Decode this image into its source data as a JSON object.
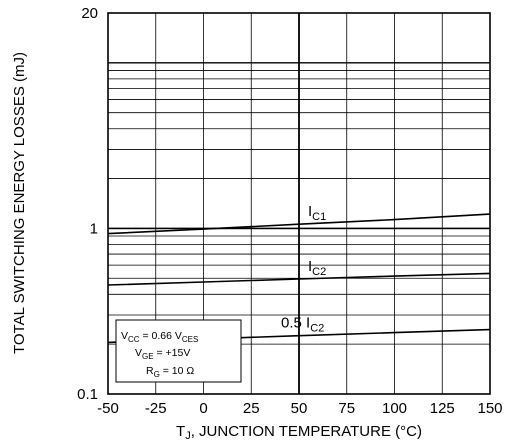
{
  "chart_data": {
    "type": "line",
    "title": "",
    "xlabel": "T_J, JUNCTION TEMPERATURE (°C)",
    "xlabel_parts": {
      "main": "T",
      "sub": "J",
      "rest": ", JUNCTION TEMPERATURE (°C)"
    },
    "ylabel": "TOTAL SWITCHING ENERGY LOSSES (mJ)",
    "xlim": [
      -50,
      150
    ],
    "ylim": [
      0.1,
      20
    ],
    "yscale": "log",
    "grid": true,
    "x_ticks": [
      "-50",
      "-25",
      "0",
      "25",
      "50",
      "75",
      "100",
      "125",
      "150"
    ],
    "x_tick_values": [
      -50,
      -25,
      0,
      25,
      50,
      75,
      100,
      125,
      150
    ],
    "y_ticks": [
      "0.1",
      "1",
      "20"
    ],
    "y_tick_values": [
      0.1,
      1,
      20
    ],
    "series": [
      {
        "label_main": "I",
        "label_sub": "C1",
        "label_prefix": "",
        "x": [
          -50,
          0,
          50,
          100,
          150
        ],
        "y": [
          0.93,
          0.99,
          1.06,
          1.13,
          1.22
        ]
      },
      {
        "label_main": "I",
        "label_sub": "C2",
        "label_prefix": "",
        "x": [
          -50,
          0,
          50,
          100,
          150
        ],
        "y": [
          0.455,
          0.475,
          0.495,
          0.515,
          0.535
        ]
      },
      {
        "label_main": "I",
        "label_sub": "C2",
        "label_prefix": "0.5 ",
        "x": [
          -50,
          0,
          50,
          100,
          150
        ],
        "y": [
          0.205,
          0.215,
          0.225,
          0.235,
          0.245
        ]
      }
    ],
    "annotation": {
      "line1": {
        "main": "V",
        "sub": "CC",
        "rest": " = 0.66 V",
        "sub2": "CES"
      },
      "line2": {
        "main": "V",
        "sub": "GE",
        "rest": " = +15V"
      },
      "line3": {
        "main": "R",
        "sub": "G",
        "rest": " = 10 Ω"
      }
    }
  }
}
